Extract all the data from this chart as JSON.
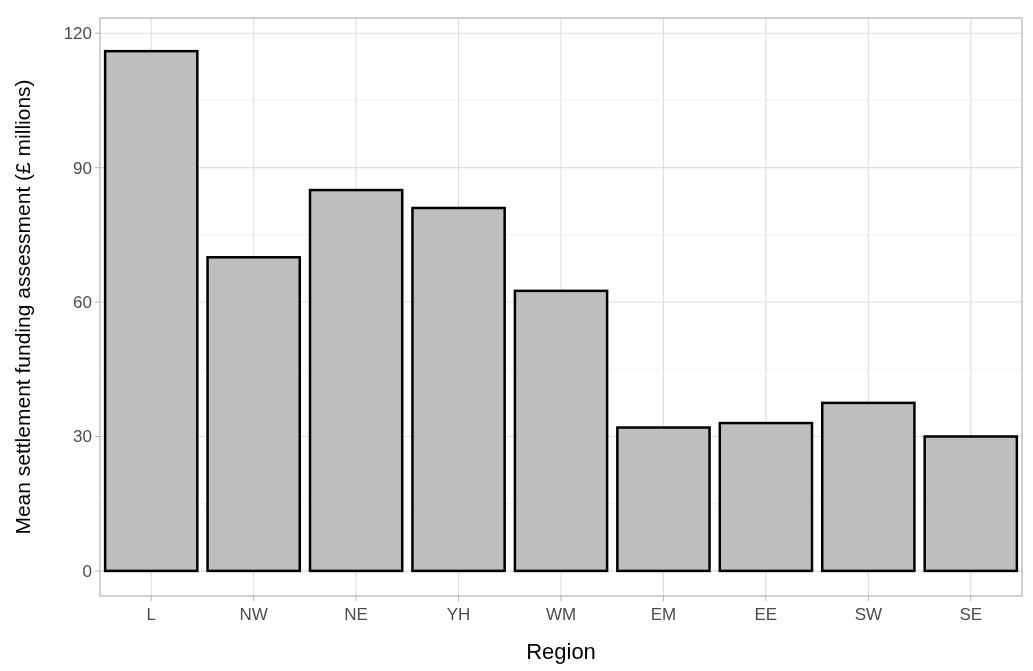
{
  "chart_data": {
    "type": "bar",
    "xlabel": "Region",
    "ylabel": "Mean settlement funding assessment (£ millions)",
    "categories": [
      "L",
      "NW",
      "NE",
      "YH",
      "WM",
      "EM",
      "EE",
      "SW",
      "SE"
    ],
    "values": [
      116,
      70,
      85,
      81,
      62.5,
      32,
      33,
      37.5,
      30
    ],
    "color": "#bebebe",
    "ylim": [
      -5.6,
      123.4
    ],
    "yticks": [
      0,
      30,
      60,
      90,
      120
    ],
    "grid": true
  }
}
